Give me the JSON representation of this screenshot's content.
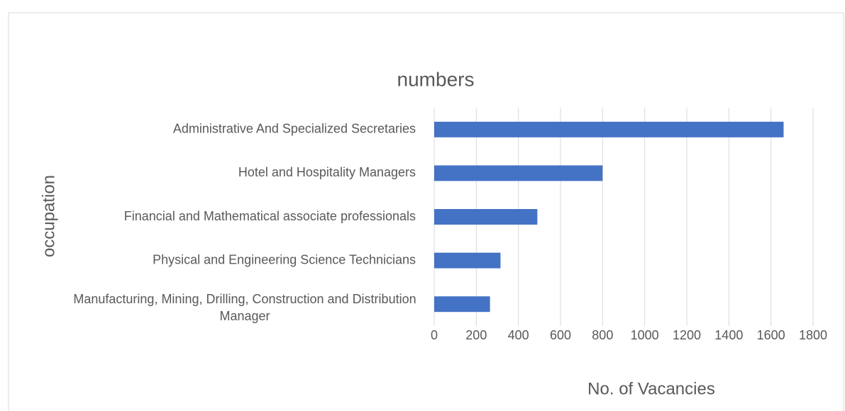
{
  "chart_data": {
    "type": "bar",
    "orientation": "horizontal",
    "title": "numbers",
    "x_label": "No. of Vacancies",
    "y_label": "occupation",
    "categories": [
      "Administrative And Specialized Secretaries",
      "Hotel and Hospitality Managers",
      "Financial and Mathematical associate professionals",
      "Physical and Engineering Science Technicians",
      "Manufacturing, Mining, Drilling, Construction and Distribution Manager"
    ],
    "values": [
      1660,
      800,
      490,
      315,
      265
    ],
    "color": "#4472c4",
    "xlim": [
      0,
      1800
    ],
    "xticks": [
      0,
      200,
      400,
      600,
      800,
      1000,
      1200,
      1400,
      1600,
      1800
    ],
    "grid": true
  }
}
